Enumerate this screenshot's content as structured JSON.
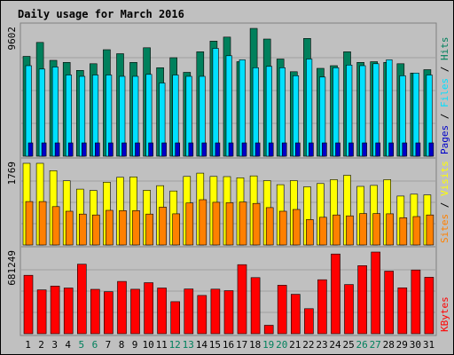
{
  "colors": {
    "hits": "#00805c",
    "files": "#00e0ff",
    "pages": "#0000c8",
    "visits": "#ffff00",
    "sites": "#ff8000",
    "kbytes": "#ff0000",
    "title": "#0000c0",
    "weekend": "#00805c",
    "text": "#000000",
    "separator": "#a0a0a0"
  },
  "chart_data": {
    "type": "bar",
    "title": "Daily usage for March 2016",
    "categories": [
      "1",
      "2",
      "3",
      "4",
      "5",
      "6",
      "7",
      "8",
      "9",
      "10",
      "11",
      "12",
      "13",
      "14",
      "15",
      "16",
      "17",
      "18",
      "19",
      "20",
      "21",
      "22",
      "23",
      "24",
      "25",
      "26",
      "27",
      "28",
      "29",
      "30",
      "31"
    ],
    "weekend_days": [
      5,
      6,
      12,
      13,
      19,
      20,
      26,
      27
    ],
    "panels": [
      {
        "id": "hits_files_pages",
        "max_label": "9602",
        "ymax": 9602,
        "legend": [
          "Pages",
          "Files",
          "Hits"
        ],
        "series": [
          {
            "name": "Hits",
            "color": "#00805c",
            "values": [
              7500,
              8550,
              7200,
              7050,
              6450,
              6950,
              8000,
              7700,
              7050,
              8150,
              6650,
              7400,
              6300,
              7850,
              8650,
              8950,
              7100,
              9602,
              8800,
              7300,
              6350,
              8850,
              6600,
              6800,
              7850,
              7050,
              7100,
              7050,
              6950,
              6250,
              6500
            ]
          },
          {
            "name": "Files",
            "color": "#00e0ff",
            "values": [
              6800,
              6550,
              6700,
              6100,
              6000,
              6100,
              6100,
              6000,
              6000,
              6150,
              5500,
              6100,
              6000,
              6000,
              8100,
              7550,
              7250,
              6650,
              6750,
              6650,
              6050,
              7300,
              5950,
              6650,
              6850,
              6800,
              6950,
              7250,
              6050,
              6250,
              6100
            ]
          },
          {
            "name": "Pages",
            "color": "#0000c8",
            "values": [
              1000,
              1000,
              1000,
              1000,
              1000,
              1000,
              1000,
              1000,
              1000,
              1000,
              1000,
              1000,
              1000,
              1000,
              1000,
              1000,
              1000,
              1000,
              1000,
              1000,
              1000,
              1000,
              1000,
              1000,
              1000,
              1000,
              1000,
              1000,
              1000,
              1000,
              1000
            ]
          }
        ]
      },
      {
        "id": "visits_sites",
        "max_label": "1769",
        "ymax": 1769,
        "legend": [
          "Sites",
          "/",
          "Visits"
        ],
        "series": [
          {
            "name": "Visits",
            "color": "#ffff00",
            "values": [
              1769,
              1769,
              1610,
              1390,
              1210,
              1180,
              1360,
              1465,
              1475,
              1185,
              1285,
              1170,
              1485,
              1555,
              1485,
              1480,
              1455,
              1495,
              1395,
              1305,
              1395,
              1260,
              1330,
              1415,
              1510,
              1270,
              1290,
              1415,
              1060,
              1100,
              1085
            ]
          },
          {
            "name": "Sites",
            "color": "#ff8000",
            "values": [
              940,
              940,
              830,
              730,
              670,
              650,
              750,
              745,
              745,
              670,
              820,
              675,
              910,
              980,
              925,
              915,
              930,
              900,
              810,
              730,
              770,
              550,
              600,
              650,
              630,
              680,
              680,
              675,
              590,
              615,
              650
            ]
          }
        ]
      },
      {
        "id": "kbytes",
        "max_label": "681249",
        "ymax": 681249,
        "legend": [
          "KBytes"
        ],
        "series": [
          {
            "name": "KBytes",
            "color": "#ff0000",
            "values": [
              487000,
              366000,
              398000,
              381000,
              580000,
              370000,
              350000,
              436000,
              371000,
              426000,
              381000,
              267000,
              373000,
              319000,
              372000,
              359000,
              576000,
              468000,
              70000,
              404000,
              329000,
              209000,
              450000,
              665000,
              410000,
              568000,
              681249,
              522000,
              383000,
              532000,
              471000
            ]
          }
        ]
      }
    ]
  }
}
